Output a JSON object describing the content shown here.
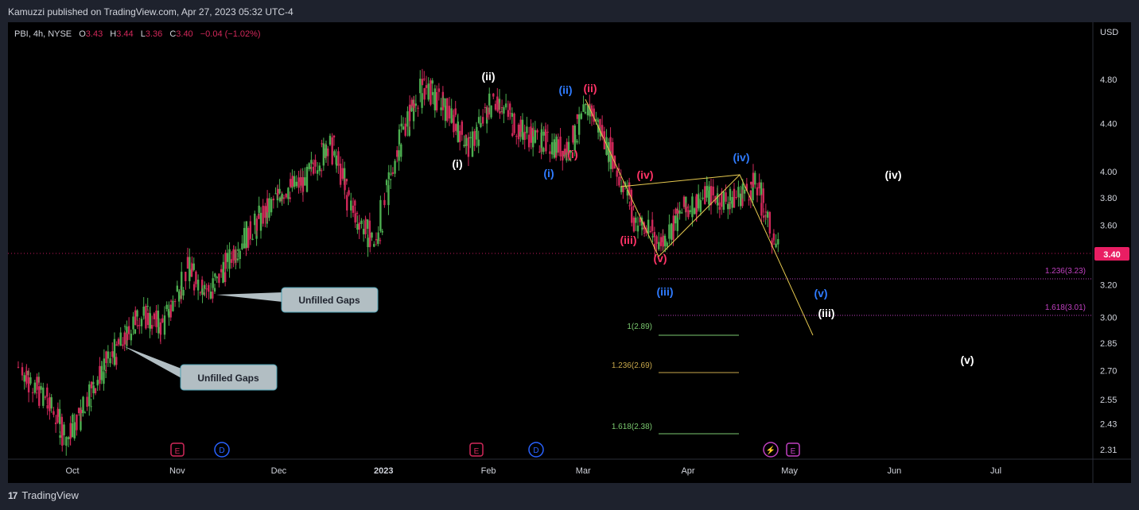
{
  "header": {
    "published": "Kamuzzi published on TradingView.com, Apr 27, 2023 05:32 UTC-4"
  },
  "legend": {
    "symbol": "PBI, 4h, NYSE",
    "o_label": "O",
    "o_value": "3.43",
    "h_label": "H",
    "h_value": "3.44",
    "l_label": "L",
    "l_value": "3.36",
    "c_label": "C",
    "c_value": "3.40",
    "change": "−0.04 (−1.02%)"
  },
  "footer": {
    "brand": "TradingView",
    "logo": "17"
  },
  "colors": {
    "bg": "#000000",
    "frame": "#1e222d",
    "up": "#4caf50",
    "down": "#d1285a",
    "white_label": "#ffffff",
    "blue_label": "#2962ff",
    "red_label": "#ff3366",
    "yellow_line": "#e6c94f",
    "purple": "#c040c0",
    "green_fib": "#7bc96f",
    "gold_fib": "#c8a84b"
  },
  "chart_data": {
    "type": "candlestick",
    "symbol": "PBI",
    "interval": "4h",
    "currency": "USD",
    "last_price": 3.4,
    "ylim": [
      2.25,
      5.2
    ],
    "y_scale": "log",
    "x_tick_labels": [
      "Oct",
      "Nov",
      "Dec",
      "2023",
      "Feb",
      "Mar",
      "Apr",
      "May",
      "Jun",
      "Jul"
    ],
    "y_tick_labels": [
      "4.80",
      "4.40",
      "4.00",
      "3.80",
      "3.60",
      "3.20",
      "3.00",
      "2.85",
      "2.70",
      "2.55",
      "2.43",
      "2.31"
    ],
    "y_tick_values": [
      4.8,
      4.4,
      4.0,
      3.8,
      3.6,
      3.2,
      3.0,
      2.85,
      2.7,
      2.55,
      2.43,
      2.31
    ],
    "approx_closes": [
      {
        "date": "2022-09-15",
        "close": 2.72
      },
      {
        "date": "2022-09-22",
        "close": 2.55
      },
      {
        "date": "2022-09-29",
        "close": 2.36
      },
      {
        "date": "2022-10-06",
        "close": 2.62
      },
      {
        "date": "2022-10-13",
        "close": 2.8
      },
      {
        "date": "2022-10-20",
        "close": 3.02
      },
      {
        "date": "2022-10-27",
        "close": 2.95
      },
      {
        "date": "2022-11-03",
        "close": 3.3
      },
      {
        "date": "2022-11-10",
        "close": 3.15
      },
      {
        "date": "2022-11-17",
        "close": 3.42
      },
      {
        "date": "2022-11-24",
        "close": 3.62
      },
      {
        "date": "2022-12-01",
        "close": 3.85
      },
      {
        "date": "2022-12-08",
        "close": 3.92
      },
      {
        "date": "2022-12-15",
        "close": 4.25
      },
      {
        "date": "2022-12-22",
        "close": 3.7
      },
      {
        "date": "2022-12-29",
        "close": 3.45
      },
      {
        "date": "2023-01-05",
        "close": 4.3
      },
      {
        "date": "2023-01-12",
        "close": 4.75
      },
      {
        "date": "2023-01-19",
        "close": 4.5
      },
      {
        "date": "2023-01-26",
        "close": 4.2
      },
      {
        "date": "2023-02-02",
        "close": 4.65
      },
      {
        "date": "2023-02-09",
        "close": 4.35
      },
      {
        "date": "2023-02-16",
        "close": 4.25
      },
      {
        "date": "2023-02-23",
        "close": 4.18
      },
      {
        "date": "2023-03-02",
        "close": 4.55
      },
      {
        "date": "2023-03-09",
        "close": 4.1
      },
      {
        "date": "2023-03-16",
        "close": 3.62
      },
      {
        "date": "2023-03-23",
        "close": 3.48
      },
      {
        "date": "2023-03-30",
        "close": 3.72
      },
      {
        "date": "2023-04-06",
        "close": 3.82
      },
      {
        "date": "2023-04-13",
        "close": 3.78
      },
      {
        "date": "2023-04-20",
        "close": 3.9
      },
      {
        "date": "2023-04-27",
        "close": 3.4
      }
    ],
    "price_label": "3.40",
    "currency_label": "USD",
    "fib_levels": [
      {
        "label": "1.236(3.23)",
        "value": 3.23
      },
      {
        "label": "1.618(3.01)",
        "value": 3.01
      },
      {
        "label": "1(2.89)",
        "value": 2.89
      },
      {
        "label": "1.236(2.69)",
        "value": 2.69
      },
      {
        "label": "1.618(2.38)",
        "value": 2.38
      }
    ],
    "wave_labels": [
      {
        "text": "(ii)",
        "color": "white"
      },
      {
        "text": "(i)",
        "color": "white"
      },
      {
        "text": "(ii)",
        "color": "blue"
      },
      {
        "text": "(ii)",
        "color": "red"
      },
      {
        "text": "(i)",
        "color": "blue"
      },
      {
        "text": "(i)",
        "color": "red"
      },
      {
        "text": "(iv)",
        "color": "blue"
      },
      {
        "text": "(iv)",
        "color": "red"
      },
      {
        "text": "(iii)",
        "color": "red"
      },
      {
        "text": "(v)",
        "color": "red"
      },
      {
        "text": "(iii)",
        "color": "blue"
      },
      {
        "text": "(iv)",
        "color": "white"
      },
      {
        "text": "(v)",
        "color": "blue"
      },
      {
        "text": "(iii)",
        "color": "white"
      },
      {
        "text": "(v)",
        "color": "white"
      }
    ],
    "annotations": [
      "Unfilled Gaps",
      "Unfilled Gaps"
    ],
    "event_badges": [
      "E",
      "D",
      "E",
      "D",
      "⚡",
      "E"
    ]
  }
}
